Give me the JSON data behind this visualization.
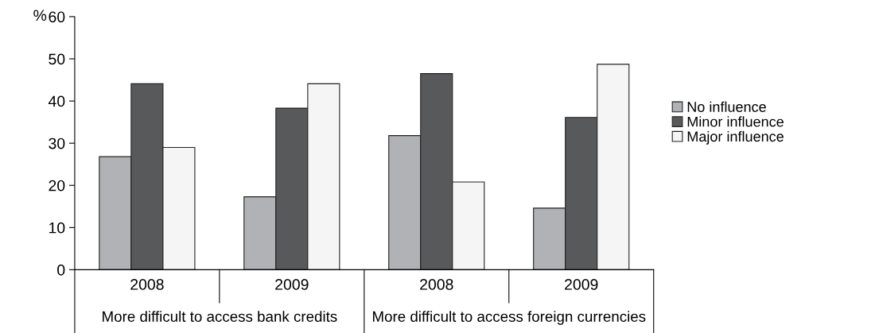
{
  "chart_data": {
    "type": "bar",
    "ylabel": "%",
    "categories": [
      "2008",
      "2009",
      "2008",
      "2009"
    ],
    "series": [
      {
        "name": "No influence",
        "color": "#b1b2b5",
        "values": [
          26.8,
          17.3,
          31.8,
          14.6
        ]
      },
      {
        "name": "Minor influence",
        "color": "#58595b",
        "values": [
          44.1,
          38.3,
          46.5,
          36.1
        ]
      },
      {
        "name": "Major influence",
        "color": "#f5f5f5",
        "values": [
          29,
          44.1,
          20.8,
          48.7
        ]
      }
    ],
    "annotations": [
      "More difficult to access bank credits",
      "More difficult to access foreign currencies"
    ],
    "ylim": [
      0,
      60
    ],
    "yticks": [
      0,
      10,
      20,
      30,
      40,
      50,
      60
    ],
    "grid": false,
    "legend": "right"
  }
}
